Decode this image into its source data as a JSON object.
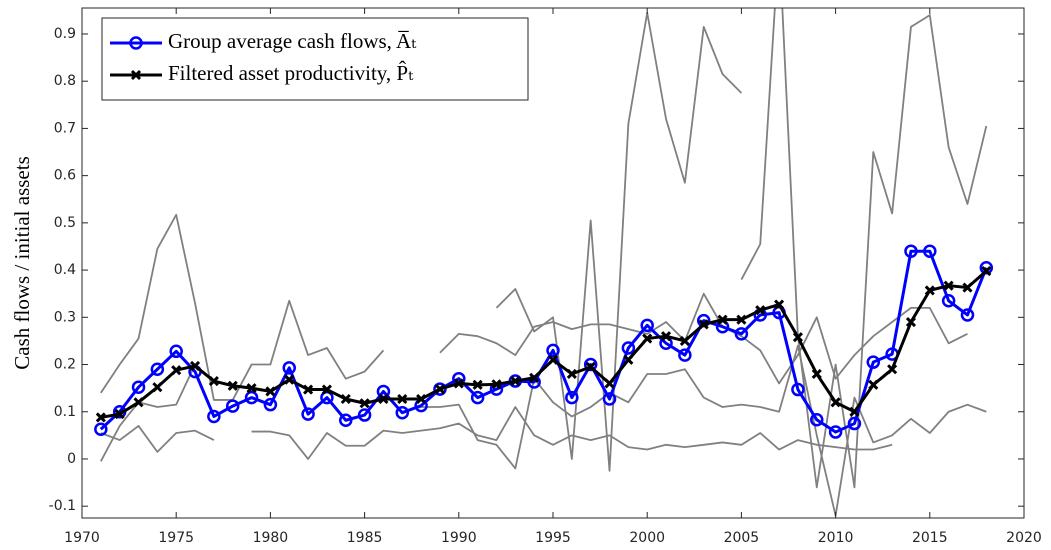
{
  "chart_data": {
    "type": "line",
    "ylabel": "Cash flows / initial assets",
    "x": [
      1971,
      1972,
      1973,
      1974,
      1975,
      1976,
      1977,
      1978,
      1979,
      1980,
      1981,
      1982,
      1983,
      1984,
      1985,
      1986,
      1987,
      1988,
      1989,
      1990,
      1991,
      1992,
      1993,
      1994,
      1995,
      1996,
      1997,
      1998,
      1999,
      2000,
      2001,
      2002,
      2003,
      2004,
      2005,
      2006,
      2007,
      2008,
      2009,
      2010,
      2011,
      2012,
      2013,
      2014,
      2015,
      2016,
      2017,
      2018
    ],
    "xlim": [
      1970,
      2020
    ],
    "xticks": [
      1970,
      1975,
      1980,
      1985,
      1990,
      1995,
      2000,
      2005,
      2010,
      2015,
      2020
    ],
    "ylim": [
      -0.125,
      0.955
    ],
    "yticks": [
      -0.1,
      0,
      0.1,
      0.2,
      0.3,
      0.4,
      0.5,
      0.6,
      0.7,
      0.8,
      0.9
    ],
    "grid": false,
    "legend": "upper-left",
    "series": [
      {
        "color": "#808080",
        "values": [
          0.14,
          0.2,
          0.255,
          0.445,
          0.517,
          0.33,
          0.125,
          0.125,
          0.2,
          0.2,
          0.335,
          0.22,
          0.235,
          0.17,
          0.185,
          0.23,
          null,
          null,
          null,
          null,
          null,
          null,
          null,
          null,
          null,
          null,
          null,
          null,
          null,
          null,
          null,
          null,
          null,
          null,
          null,
          null,
          null,
          null,
          null,
          null,
          null,
          null,
          null,
          null,
          null,
          null,
          null,
          null
        ]
      },
      {
        "color": "#808080",
        "values": [
          -0.005,
          0.07,
          0.12,
          0.11,
          0.115,
          0.2,
          null,
          null,
          null,
          null,
          null,
          null,
          null,
          null,
          null,
          null,
          null,
          null,
          null,
          null,
          null,
          null,
          null,
          null,
          null,
          null,
          null,
          null,
          null,
          null,
          null,
          null,
          null,
          null,
          null,
          null,
          null,
          null,
          null,
          null,
          null,
          null,
          null,
          null,
          null,
          null,
          null,
          null
        ]
      },
      {
        "color": "#808080",
        "values": [
          0.055,
          0.04,
          0.07,
          0.015,
          0.055,
          0.06,
          0.04,
          null,
          0.058,
          0.058,
          0.05,
          0.0,
          0.055,
          0.028,
          0.028,
          0.06,
          0.055,
          0.06,
          0.065,
          0.075,
          0.05,
          0.04,
          0.11,
          0.05,
          0.03,
          0.05,
          0.04,
          0.05,
          0.025,
          0.02,
          0.03,
          0.025,
          0.03,
          0.035,
          0.03,
          0.055,
          0.02,
          0.04,
          0.03,
          0.025,
          0.02,
          0.02,
          0.03,
          null,
          null,
          null,
          null,
          null
        ]
      },
      {
        "color": "#808080",
        "values": [
          null,
          null,
          null,
          null,
          null,
          null,
          null,
          null,
          null,
          null,
          null,
          null,
          null,
          null,
          null,
          null,
          null,
          null,
          null,
          null,
          null,
          0.32,
          0.36,
          0.27,
          0.3,
          0.0,
          0.505,
          -0.025,
          0.71,
          0.945,
          0.72,
          0.585,
          0.915,
          0.815,
          0.775,
          null,
          null,
          null,
          null,
          null,
          null,
          null,
          null,
          null,
          null,
          null,
          null,
          null
        ]
      },
      {
        "color": "#808080",
        "values": [
          null,
          null,
          null,
          null,
          null,
          null,
          null,
          null,
          null,
          null,
          null,
          null,
          null,
          null,
          null,
          null,
          null,
          null,
          null,
          null,
          null,
          null,
          null,
          null,
          null,
          null,
          null,
          null,
          null,
          null,
          null,
          null,
          null,
          null,
          0.38,
          0.455,
          1.1,
          0.26,
          -0.06,
          0.2,
          -0.06,
          0.65,
          0.52,
          0.915,
          0.94,
          0.66,
          0.54,
          0.705
        ]
      },
      {
        "color": "#808080",
        "values": [
          null,
          null,
          null,
          null,
          null,
          null,
          null,
          null,
          null,
          null,
          null,
          null,
          null,
          null,
          null,
          null,
          null,
          null,
          0.225,
          0.265,
          0.26,
          0.245,
          0.22,
          0.28,
          0.29,
          0.275,
          0.285,
          0.285,
          0.275,
          0.265,
          0.29,
          0.25,
          0.35,
          0.28,
          0.26,
          0.23,
          0.16,
          0.22,
          0.3,
          0.17,
          0.22,
          0.26,
          0.29,
          0.32,
          0.32,
          0.245,
          0.265,
          null
        ]
      },
      {
        "color": "#808080",
        "values": [
          null,
          null,
          null,
          null,
          null,
          null,
          null,
          null,
          null,
          null,
          null,
          null,
          null,
          null,
          null,
          null,
          0.1,
          0.11,
          0.11,
          0.115,
          0.04,
          0.03,
          -0.02,
          0.17,
          0.12,
          0.09,
          0.11,
          0.14,
          0.12,
          0.18,
          0.18,
          0.19,
          0.13,
          0.11,
          0.115,
          0.11,
          0.1,
          0.24,
          0.05,
          -0.12,
          0.13,
          0.035,
          0.05,
          0.085,
          0.055,
          0.1,
          0.115,
          0.1
        ]
      },
      {
        "name": "Group average cash flows, A̅ₜ",
        "color": "#0000ff",
        "marker": "circle",
        "values": [
          0.063,
          0.1,
          0.152,
          0.19,
          0.228,
          0.185,
          0.09,
          0.112,
          0.13,
          0.115,
          0.193,
          0.095,
          0.13,
          0.082,
          0.093,
          0.143,
          0.098,
          0.113,
          0.148,
          0.17,
          0.13,
          0.148,
          0.165,
          0.163,
          0.23,
          0.13,
          0.2,
          0.127,
          0.235,
          0.283,
          0.245,
          0.22,
          0.293,
          0.28,
          0.265,
          0.305,
          0.31,
          0.147,
          0.083,
          0.057,
          0.075,
          0.205,
          0.222,
          0.44,
          0.44,
          0.335,
          0.305,
          0.405
        ]
      },
      {
        "name": "Filtered asset productivity, P̂ₜ",
        "color": "#000000",
        "marker": "x",
        "values": [
          0.088,
          0.095,
          0.12,
          0.152,
          0.188,
          0.197,
          0.165,
          0.155,
          0.15,
          0.143,
          0.168,
          0.147,
          0.147,
          0.127,
          0.118,
          0.127,
          0.127,
          0.127,
          0.148,
          0.16,
          0.157,
          0.158,
          0.165,
          0.172,
          0.21,
          0.18,
          0.195,
          0.16,
          0.21,
          0.255,
          0.26,
          0.25,
          0.285,
          0.295,
          0.295,
          0.315,
          0.327,
          0.258,
          0.18,
          0.12,
          0.1,
          0.157,
          0.19,
          0.29,
          0.357,
          0.367,
          0.363,
          0.398
        ]
      }
    ]
  }
}
